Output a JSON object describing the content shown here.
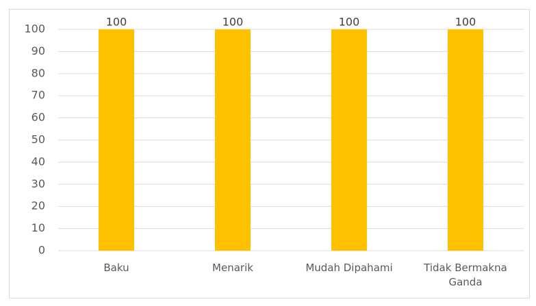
{
  "chart_data": {
    "type": "bar",
    "categories": [
      "Baku",
      "Menarik",
      "Mudah Dipahami",
      "Tidak Bermakna Ganda"
    ],
    "values": [
      100,
      100,
      100,
      100
    ],
    "color": "#ffc000",
    "ylim": [
      0,
      100
    ],
    "yticks": [
      0,
      10,
      20,
      30,
      40,
      50,
      60,
      70,
      80,
      90,
      100
    ],
    "grid": true
  }
}
